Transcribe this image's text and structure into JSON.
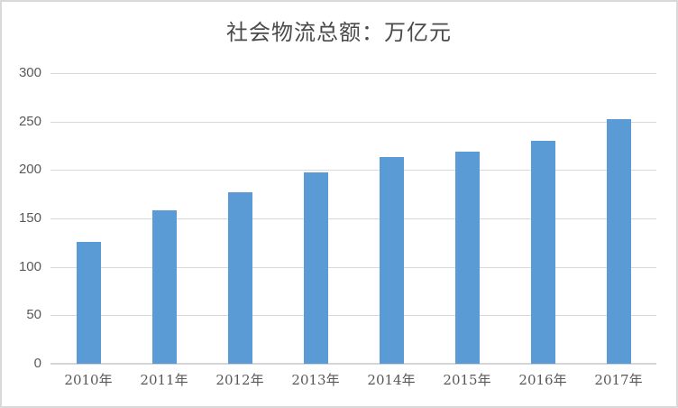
{
  "chart_data": {
    "type": "bar",
    "title": "社会物流总额：万亿元",
    "categories": [
      "2010年",
      "2011年",
      "2012年",
      "2013年",
      "2014年",
      "2015年",
      "2016年",
      "2017年"
    ],
    "values": [
      125.4,
      158.4,
      177.3,
      197.8,
      213.5,
      219.2,
      229.7,
      252.8
    ],
    "series_name": "社会物流总额",
    "xlabel": "",
    "ylabel": "",
    "ylim": [
      0,
      300
    ],
    "y_ticks": [
      0,
      50,
      100,
      150,
      200,
      250,
      300
    ],
    "grid": true,
    "legend_position": "none",
    "colors": {
      "bar": "#5b9bd5",
      "gridline": "#d9d9d9",
      "axis_line": "#d6d6d6",
      "tick_label": "#595959",
      "title": "#4a4a4a",
      "frame_border": "#d9d9d9",
      "background": "#ffffff"
    }
  }
}
